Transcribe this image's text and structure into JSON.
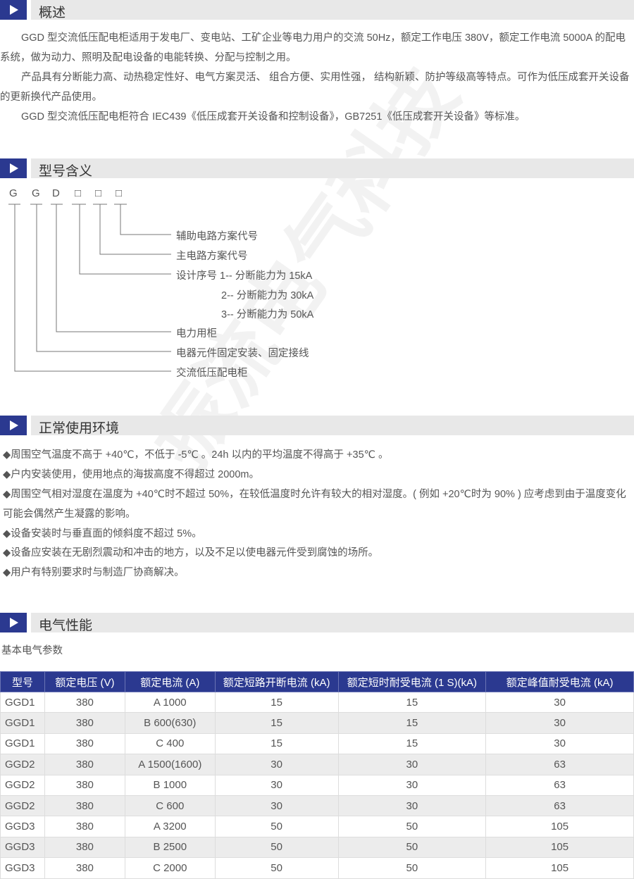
{
  "watermark": "振流电气科技",
  "overview": {
    "title": "概述",
    "paragraphs": [
      "GGD 型交流低压配电柜适用于发电厂、变电站、工矿企业等电力用户的交流 50Hz，额定工作电压 380V，额定工作电流 5000A 的配电系统，做为动力、照明及配电设备的电能转换、分配与控制之用。",
      "产品具有分断能力高、动热稳定性好、电气方案灵活、 组合方便、实用性强， 结构新颖、防护等级高等特点。可作为低压成套开关设备的更新换代产品使用。",
      "GGD 型交流低压配电柜符合 IEC439《低压成套开关设备和控制设备》，GB7251《低压成套开关设备》等标准。"
    ]
  },
  "model": {
    "title": "型号含义",
    "letters": [
      "G",
      "G",
      "D",
      "□",
      "□",
      "□"
    ],
    "labels": [
      "辅助电路方案代号",
      "主电路方案代号",
      "设计序号 1-- 分断能力为 15kA",
      "2-- 分断能力为 30kA",
      "3-- 分断能力为 50kA",
      "电力用柜",
      "电器元件固定安装、固定接线",
      "交流低压配电柜"
    ]
  },
  "environment": {
    "title": "正常使用环境",
    "items": [
      "◆周围空气温度不高于 +40℃，不低于 -5℃ 。24h 以内的平均温度不得高于 +35℃ 。",
      "◆户内安装使用，使用地点的海拔高度不得超过 2000m。",
      "◆周围空气相对湿度在温度为 +40℃时不超过 50%，在较低温度时允许有较大的相对湿度。( 例如 +20℃时为 90% ) 应考虑到由于温度变化可能会偶然产生凝露的影响。",
      "◆设备安装时与垂直面的倾斜度不超过 5%。",
      "◆设备应安装在无剧烈震动和冲击的地方，以及不足以使电器元件受到腐蚀的场所。",
      "◆用户有特别要求时与制造厂协商解决。"
    ]
  },
  "electrical": {
    "title": "电气性能",
    "subtitle": "基本电气参数",
    "headers": [
      "型号",
      "额定电压 (V)",
      "额定电流 (A)",
      "额定短路开断电流 (kA)",
      "额定短时耐受电流 (1 S)(kA)",
      "额定峰值耐受电流 (kA)"
    ],
    "rows": [
      [
        "GGD1",
        "380",
        "A  1000",
        "15",
        "15",
        "30"
      ],
      [
        "GGD1",
        "380",
        "B  600(630)",
        "15",
        "15",
        "30"
      ],
      [
        "GGD1",
        "380",
        "C  400",
        "15",
        "15",
        "30"
      ],
      [
        "GGD2",
        "380",
        "A  1500(1600)",
        "30",
        "30",
        "63"
      ],
      [
        "GGD2",
        "380",
        "B  1000",
        "30",
        "30",
        "63"
      ],
      [
        "GGD2",
        "380",
        "C  600",
        "30",
        "30",
        "63"
      ],
      [
        "GGD3",
        "380",
        "A  3200",
        "50",
        "50",
        "105"
      ],
      [
        "GGD3",
        "380",
        "B  2500",
        "50",
        "50",
        "105"
      ],
      [
        "GGD3",
        "380",
        "C  2000",
        "50",
        "50",
        "105"
      ]
    ]
  },
  "colors": {
    "accent": "#2b3990",
    "section_bar": "#e8e8e8",
    "alt_row": "#ececec"
  }
}
